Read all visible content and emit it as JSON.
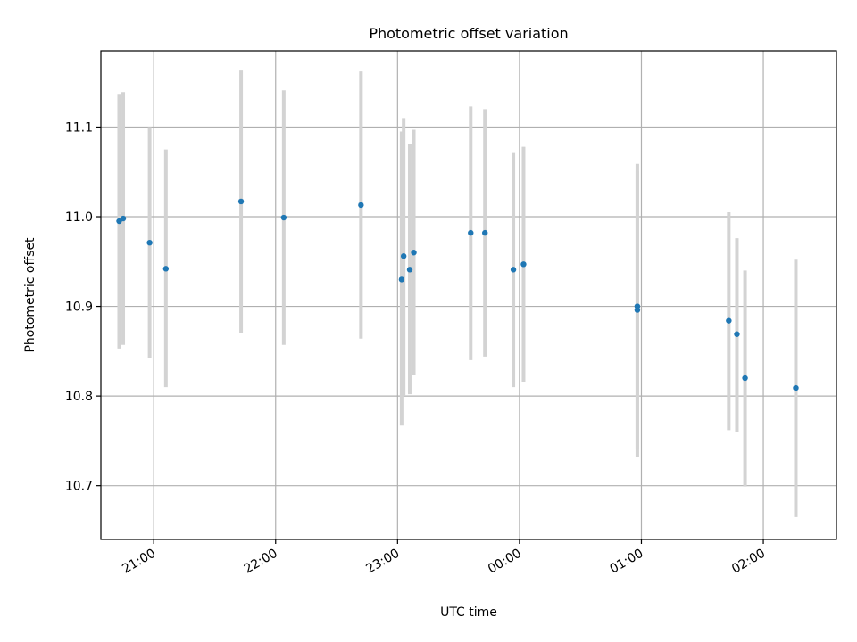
{
  "chart_data": {
    "type": "scatter",
    "title": "Photometric offset variation",
    "xlabel": "UTC time",
    "ylabel": "Photometric offset",
    "x_type": "time",
    "xlim": [
      "20:34",
      "02:36"
    ],
    "ylim": [
      10.64,
      11.185
    ],
    "grid": true,
    "x_ticks": [
      "21:00",
      "22:00",
      "23:00",
      "00:00",
      "01:00",
      "02:00"
    ],
    "y_ticks": [
      10.7,
      10.8,
      10.9,
      11.0,
      11.1
    ],
    "y_tick_labels": [
      "10.7",
      "10.8",
      "10.9",
      "11.0",
      "11.1"
    ],
    "series": [
      {
        "marker_color": "#1f77b4",
        "errorbar_color": "#d3d3d3",
        "points": [
          {
            "x": "20:43",
            "y": 10.995,
            "yerr_low": 10.853,
            "yerr_high": 11.137
          },
          {
            "x": "20:45",
            "y": 10.998,
            "yerr_low": 10.857,
            "yerr_high": 11.139
          },
          {
            "x": "20:58",
            "y": 10.971,
            "yerr_low": 10.842,
            "yerr_high": 11.1
          },
          {
            "x": "21:06",
            "y": 10.942,
            "yerr_low": 10.81,
            "yerr_high": 11.075
          },
          {
            "x": "21:43",
            "y": 11.017,
            "yerr_low": 10.87,
            "yerr_high": 11.163
          },
          {
            "x": "22:04",
            "y": 10.999,
            "yerr_low": 10.857,
            "yerr_high": 11.141
          },
          {
            "x": "22:42",
            "y": 11.013,
            "yerr_low": 10.864,
            "yerr_high": 11.162
          },
          {
            "x": "23:02",
            "y": 10.93,
            "yerr_low": 10.767,
            "yerr_high": 11.095
          },
          {
            "x": "23:03",
            "y": 10.956,
            "yerr_low": 10.801,
            "yerr_high": 11.11
          },
          {
            "x": "23:06",
            "y": 10.941,
            "yerr_low": 10.802,
            "yerr_high": 11.081
          },
          {
            "x": "23:08",
            "y": 10.96,
            "yerr_low": 10.823,
            "yerr_high": 11.097
          },
          {
            "x": "23:36",
            "y": 10.982,
            "yerr_low": 10.84,
            "yerr_high": 11.123
          },
          {
            "x": "23:43",
            "y": 10.982,
            "yerr_low": 10.844,
            "yerr_high": 11.12
          },
          {
            "x": "23:57",
            "y": 10.941,
            "yerr_low": 10.81,
            "yerr_high": 11.071
          },
          {
            "x": "00:02",
            "y": 10.947,
            "yerr_low": 10.816,
            "yerr_high": 11.078
          },
          {
            "x": "00:58",
            "y": 10.896,
            "yerr_low": 10.741,
            "yerr_high": 11.051
          },
          {
            "x": "00:58",
            "y": 10.9,
            "yerr_low": 10.732,
            "yerr_high": 11.059
          },
          {
            "x": "01:43",
            "y": 10.884,
            "yerr_low": 10.762,
            "yerr_high": 11.005
          },
          {
            "x": "01:47",
            "y": 10.869,
            "yerr_low": 10.76,
            "yerr_high": 10.976
          },
          {
            "x": "01:51",
            "y": 10.82,
            "yerr_low": 10.699,
            "yerr_high": 10.94
          },
          {
            "x": "02:16",
            "y": 10.809,
            "yerr_low": 10.665,
            "yerr_high": 10.952
          }
        ]
      }
    ]
  }
}
